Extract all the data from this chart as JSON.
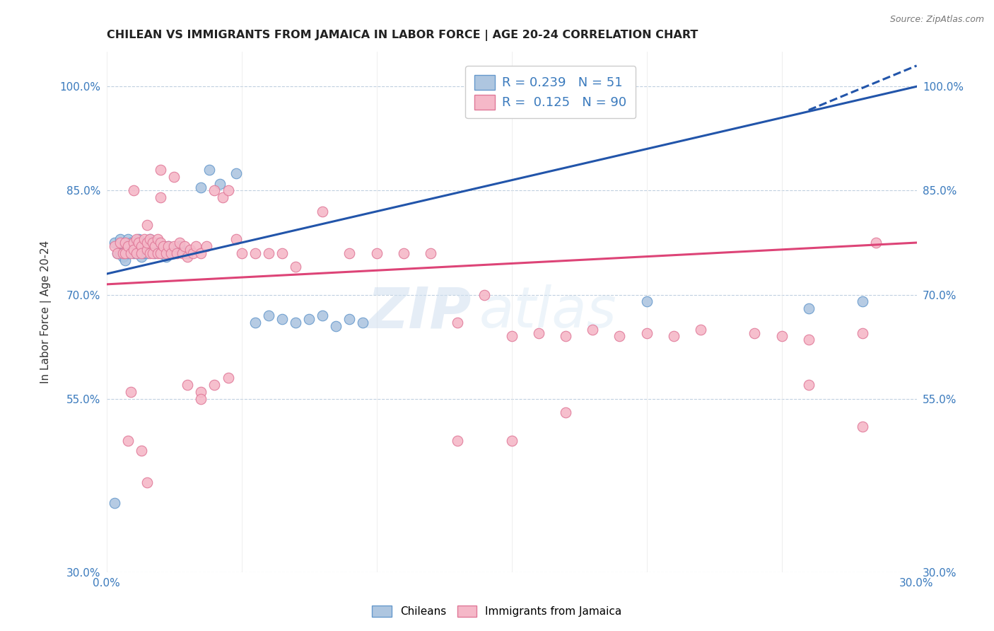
{
  "title": "CHILEAN VS IMMIGRANTS FROM JAMAICA IN LABOR FORCE | AGE 20-24 CORRELATION CHART",
  "source": "Source: ZipAtlas.com",
  "ylabel": "In Labor Force | Age 20-24",
  "xlim": [
    0.0,
    0.3
  ],
  "ylim": [
    0.3,
    1.05
  ],
  "xticks": [
    0.0,
    0.05,
    0.1,
    0.15,
    0.2,
    0.25,
    0.3
  ],
  "xtick_labels": [
    "0.0%",
    "",
    "",
    "",
    "",
    "",
    "30.0%"
  ],
  "yticks": [
    0.3,
    0.55,
    0.7,
    0.85,
    1.0
  ],
  "ytick_labels": [
    "30.0%",
    "55.0%",
    "70.0%",
    "85.0%",
    "100.0%"
  ],
  "blue_R": 0.239,
  "blue_N": 51,
  "pink_R": 0.125,
  "pink_N": 90,
  "blue_color": "#aec6e0",
  "blue_edge": "#6699cc",
  "pink_color": "#f5b8c8",
  "pink_edge": "#e07898",
  "blue_line_color": "#2255aa",
  "pink_line_color": "#dd4477",
  "legend_label_blue": "Chileans",
  "legend_label_pink": "Immigrants from Jamaica",
  "watermark_zip": "ZIP",
  "watermark_atlas": "atlas",
  "blue_line_x0": 0.0,
  "blue_line_y0": 0.73,
  "blue_line_x1": 0.3,
  "blue_line_y1": 1.0,
  "pink_line_x0": 0.0,
  "pink_line_y0": 0.715,
  "pink_line_x1": 0.3,
  "pink_line_y1": 0.775,
  "blue_dots_x": [
    0.003,
    0.004,
    0.005,
    0.005,
    0.006,
    0.007,
    0.007,
    0.008,
    0.008,
    0.009,
    0.01,
    0.01,
    0.011,
    0.011,
    0.012,
    0.012,
    0.013,
    0.013,
    0.014,
    0.014,
    0.015,
    0.015,
    0.016,
    0.016,
    0.017,
    0.018,
    0.019,
    0.02,
    0.021,
    0.022,
    0.023,
    0.025,
    0.027,
    0.03,
    0.035,
    0.038,
    0.042,
    0.048,
    0.055,
    0.06,
    0.065,
    0.07,
    0.075,
    0.08,
    0.085,
    0.09,
    0.095,
    0.2,
    0.26,
    0.28,
    0.003
  ],
  "blue_dots_y": [
    0.775,
    0.76,
    0.78,
    0.76,
    0.755,
    0.77,
    0.75,
    0.78,
    0.76,
    0.775,
    0.77,
    0.76,
    0.775,
    0.76,
    0.78,
    0.765,
    0.77,
    0.755,
    0.775,
    0.76,
    0.775,
    0.76,
    0.78,
    0.765,
    0.77,
    0.76,
    0.775,
    0.76,
    0.77,
    0.755,
    0.77,
    0.76,
    0.77,
    0.76,
    0.855,
    0.88,
    0.86,
    0.875,
    0.66,
    0.67,
    0.665,
    0.66,
    0.665,
    0.67,
    0.655,
    0.665,
    0.66,
    0.69,
    0.68,
    0.69,
    0.4
  ],
  "pink_dots_x": [
    0.003,
    0.004,
    0.005,
    0.006,
    0.007,
    0.007,
    0.008,
    0.009,
    0.01,
    0.01,
    0.011,
    0.011,
    0.012,
    0.013,
    0.013,
    0.014,
    0.015,
    0.015,
    0.016,
    0.016,
    0.017,
    0.017,
    0.018,
    0.019,
    0.019,
    0.02,
    0.02,
    0.021,
    0.022,
    0.023,
    0.024,
    0.025,
    0.026,
    0.027,
    0.028,
    0.029,
    0.03,
    0.031,
    0.032,
    0.033,
    0.035,
    0.037,
    0.04,
    0.043,
    0.045,
    0.048,
    0.05,
    0.055,
    0.06,
    0.065,
    0.07,
    0.08,
    0.09,
    0.1,
    0.11,
    0.12,
    0.13,
    0.14,
    0.15,
    0.16,
    0.17,
    0.18,
    0.19,
    0.2,
    0.21,
    0.22,
    0.24,
    0.25,
    0.26,
    0.28,
    0.285,
    0.01,
    0.015,
    0.02,
    0.025,
    0.035,
    0.04,
    0.045,
    0.015,
    0.013,
    0.008,
    0.009,
    0.03,
    0.035,
    0.13,
    0.15,
    0.17,
    0.28,
    0.26,
    0.02
  ],
  "pink_dots_y": [
    0.77,
    0.76,
    0.775,
    0.76,
    0.775,
    0.76,
    0.77,
    0.76,
    0.775,
    0.765,
    0.78,
    0.76,
    0.775,
    0.77,
    0.76,
    0.78,
    0.765,
    0.775,
    0.78,
    0.76,
    0.775,
    0.76,
    0.77,
    0.78,
    0.76,
    0.775,
    0.76,
    0.77,
    0.76,
    0.77,
    0.76,
    0.77,
    0.76,
    0.775,
    0.76,
    0.77,
    0.755,
    0.765,
    0.76,
    0.77,
    0.76,
    0.77,
    0.85,
    0.84,
    0.85,
    0.78,
    0.76,
    0.76,
    0.76,
    0.76,
    0.74,
    0.82,
    0.76,
    0.76,
    0.76,
    0.76,
    0.66,
    0.7,
    0.64,
    0.645,
    0.64,
    0.65,
    0.64,
    0.645,
    0.64,
    0.65,
    0.645,
    0.64,
    0.635,
    0.645,
    0.775,
    0.85,
    0.8,
    0.88,
    0.87,
    0.56,
    0.57,
    0.58,
    0.43,
    0.475,
    0.49,
    0.56,
    0.57,
    0.55,
    0.49,
    0.49,
    0.53,
    0.51,
    0.57,
    0.84
  ]
}
